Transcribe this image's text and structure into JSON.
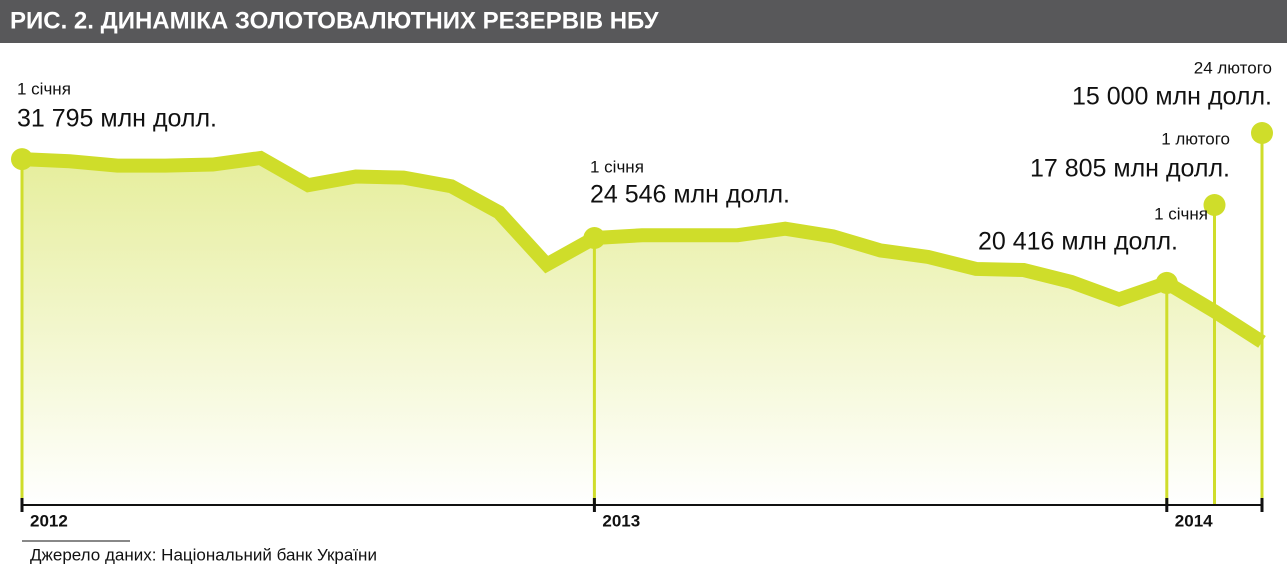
{
  "chart_data": {
    "type": "area",
    "title": "РИС. 2. ДИНАМІКА ЗОЛОТОВАЛЮТНИХ РЕЗЕРВІВ НБУ",
    "source": "Джерело даних: Національний банк України",
    "categories": [
      "2012",
      null,
      null,
      null,
      null,
      null,
      null,
      null,
      null,
      null,
      null,
      null,
      "2013",
      null,
      null,
      null,
      null,
      null,
      null,
      null,
      null,
      null,
      null,
      null,
      "2014",
      null,
      null
    ],
    "values": [
      31795,
      31600,
      31200,
      31200,
      31300,
      31900,
      29400,
      30200,
      30100,
      29300,
      26900,
      22100,
      24546,
      24800,
      24800,
      24800,
      25400,
      24700,
      23400,
      22800,
      21700,
      21600,
      20500,
      18900,
      20416,
      17805,
      15000
    ],
    "value_labels": [
      "31 795 млн долл.",
      null,
      null,
      null,
      null,
      null,
      null,
      null,
      null,
      null,
      null,
      null,
      "24 546 млн долл.",
      null,
      null,
      null,
      null,
      null,
      null,
      null,
      null,
      null,
      null,
      null,
      "20 416 млн долл.",
      "17 805 млн долл.",
      "15 000 млн долл."
    ],
    "date_labels": [
      "1 січня",
      null,
      null,
      null,
      null,
      null,
      null,
      null,
      null,
      null,
      null,
      null,
      "1 січня",
      null,
      null,
      null,
      null,
      null,
      null,
      null,
      null,
      null,
      null,
      null,
      "1 січня",
      "1 лютого",
      "24 лютого"
    ],
    "color": "#cfdd2a"
  }
}
